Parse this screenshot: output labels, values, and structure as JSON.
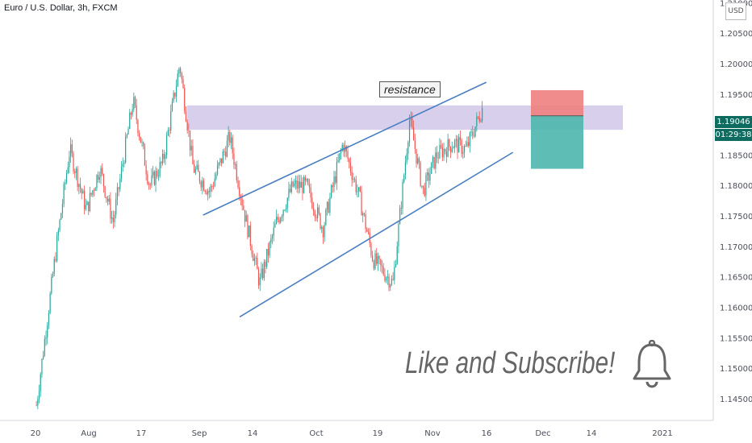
{
  "header": {
    "symbol_title": "Euro / U.S. Dollar, 3h, FXCM"
  },
  "price_axis": {
    "currency": "USD",
    "current_price": "1.19046",
    "countdown": "01:29:38"
  },
  "annotations": {
    "resistance_label": "resistance",
    "call_to_action": "Like and Subscribe!"
  },
  "icons": {
    "bell": "bell-icon"
  },
  "colors": {
    "up": "#26a69a",
    "down": "#ef5350",
    "resistance_zone": "#c9bfe6",
    "channel_line": "#4a7fc1",
    "price_tag": "#0d6b5f",
    "stop_zone": "#f08080",
    "target_zone": "#4db6ac"
  },
  "chart_data": {
    "type": "candlestick",
    "y_ticks": [
      "1.21000",
      "1.20500",
      "1.20000",
      "1.19500",
      "1.19000",
      "1.18500",
      "1.18000",
      "1.17500",
      "1.17000",
      "1.16500",
      "1.16000",
      "1.15500",
      "1.15000",
      "1.14500"
    ],
    "x_ticks": [
      "20",
      "Aug",
      "17",
      "Sep",
      "14",
      "Oct",
      "19",
      "Nov",
      "16",
      "Dec",
      "14",
      "2021"
    ],
    "ylim": [
      1.1415,
      1.2105
    ],
    "resistance_zone": [
      1.1892,
      1.1932
    ],
    "channel": {
      "upper": [
        {
          "date": "Sep 8",
          "price": 1.1752
        },
        {
          "date": "Dec 2",
          "price": 1.197
        }
      ],
      "lower": [
        {
          "date": "Sep 19",
          "price": 1.1585
        },
        {
          "date": "Dec 10",
          "price": 1.1855
        }
      ]
    },
    "short_position": {
      "entry": 1.1915,
      "stop": 1.1957,
      "target": 1.1828
    },
    "trend_path": [
      {
        "x": "Jul 20",
        "price": 1.144
      },
      {
        "x": "Jul 26",
        "price": 1.17
      },
      {
        "x": "Jul 30",
        "price": 1.186
      },
      {
        "x": "Aug 4",
        "price": 1.176
      },
      {
        "x": "Aug 8",
        "price": 1.183
      },
      {
        "x": "Aug 12",
        "price": 1.174
      },
      {
        "x": "Aug 18",
        "price": 1.194
      },
      {
        "x": "Aug 23",
        "price": 1.18
      },
      {
        "x": "Aug 27",
        "price": 1.184
      },
      {
        "x": "Sep 1",
        "price": 1.2
      },
      {
        "x": "Sep 5",
        "price": 1.183
      },
      {
        "x": "Sep 10",
        "price": 1.179
      },
      {
        "x": "Sep 16",
        "price": 1.188
      },
      {
        "x": "Sep 21",
        "price": 1.174
      },
      {
        "x": "Sep 25",
        "price": 1.164
      },
      {
        "x": "Sep 30",
        "price": 1.174
      },
      {
        "x": "Oct 5",
        "price": 1.18
      },
      {
        "x": "Oct 9",
        "price": 1.18
      },
      {
        "x": "Oct 14",
        "price": 1.173
      },
      {
        "x": "Oct 20",
        "price": 1.187
      },
      {
        "x": "Oct 25",
        "price": 1.178
      },
      {
        "x": "Oct 29",
        "price": 1.168
      },
      {
        "x": "Nov 4",
        "price": 1.164
      },
      {
        "x": "Nov 9",
        "price": 1.191
      },
      {
        "x": "Nov 13",
        "price": 1.179
      },
      {
        "x": "Nov 17",
        "price": 1.185
      },
      {
        "x": "Nov 22",
        "price": 1.187
      },
      {
        "x": "Nov 26",
        "price": 1.186
      },
      {
        "x": "Dec 1",
        "price": 1.193
      }
    ]
  }
}
